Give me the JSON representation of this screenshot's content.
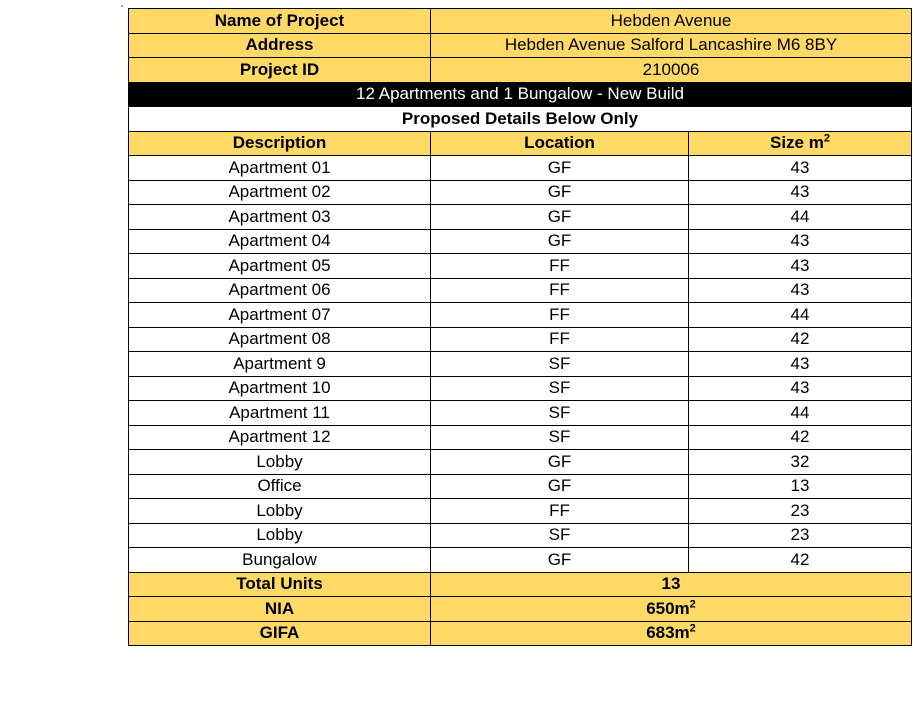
{
  "header": {
    "name_label": "Name of Project",
    "name_value": "Hebden Avenue",
    "address_label": "Address",
    "address_value": "Hebden Avenue Salford Lancashire M6 8BY",
    "id_label": "Project ID",
    "id_value": "210006"
  },
  "banner": "12 Apartments and 1 Bungalow - New Build",
  "subheading": "Proposed Details Below Only",
  "columns": {
    "description": "Description",
    "location": "Location",
    "size": "Size m",
    "size_sup": "2"
  },
  "rows": [
    {
      "description": "Apartment 01",
      "location": "GF",
      "size": "43"
    },
    {
      "description": "Apartment 02",
      "location": "GF",
      "size": "43"
    },
    {
      "description": "Apartment 03",
      "location": "GF",
      "size": "44"
    },
    {
      "description": "Apartment 04",
      "location": "GF",
      "size": "43"
    },
    {
      "description": "Apartment 05",
      "location": "FF",
      "size": "43"
    },
    {
      "description": "Apartment 06",
      "location": "FF",
      "size": "43"
    },
    {
      "description": "Apartment 07",
      "location": "FF",
      "size": "44"
    },
    {
      "description": "Apartment 08",
      "location": "FF",
      "size": "42"
    },
    {
      "description": "Apartment 9",
      "location": "SF",
      "size": "43"
    },
    {
      "description": "Apartment 10",
      "location": "SF",
      "size": "43"
    },
    {
      "description": "Apartment 11",
      "location": "SF",
      "size": "44"
    },
    {
      "description": "Apartment 12",
      "location": "SF",
      "size": "42"
    },
    {
      "description": "Lobby",
      "location": "GF",
      "size": "32"
    },
    {
      "description": "Office",
      "location": "GF",
      "size": "13"
    },
    {
      "description": "Lobby",
      "location": "FF",
      "size": "23"
    },
    {
      "description": "Lobby",
      "location": "SF",
      "size": "23"
    },
    {
      "description": "Bungalow",
      "location": "GF",
      "size": "42"
    }
  ],
  "totals": {
    "units_label": "Total Units",
    "units_value": "13",
    "nia_label": "NIA",
    "nia_value": "650m",
    "nia_sup": "2",
    "gifa_label": "GIFA",
    "gifa_value": "683m",
    "gifa_sup": "2"
  },
  "colors": {
    "header_fill": "#ffd966",
    "banner_fill": "#000000",
    "banner_text": "#ffffff"
  }
}
